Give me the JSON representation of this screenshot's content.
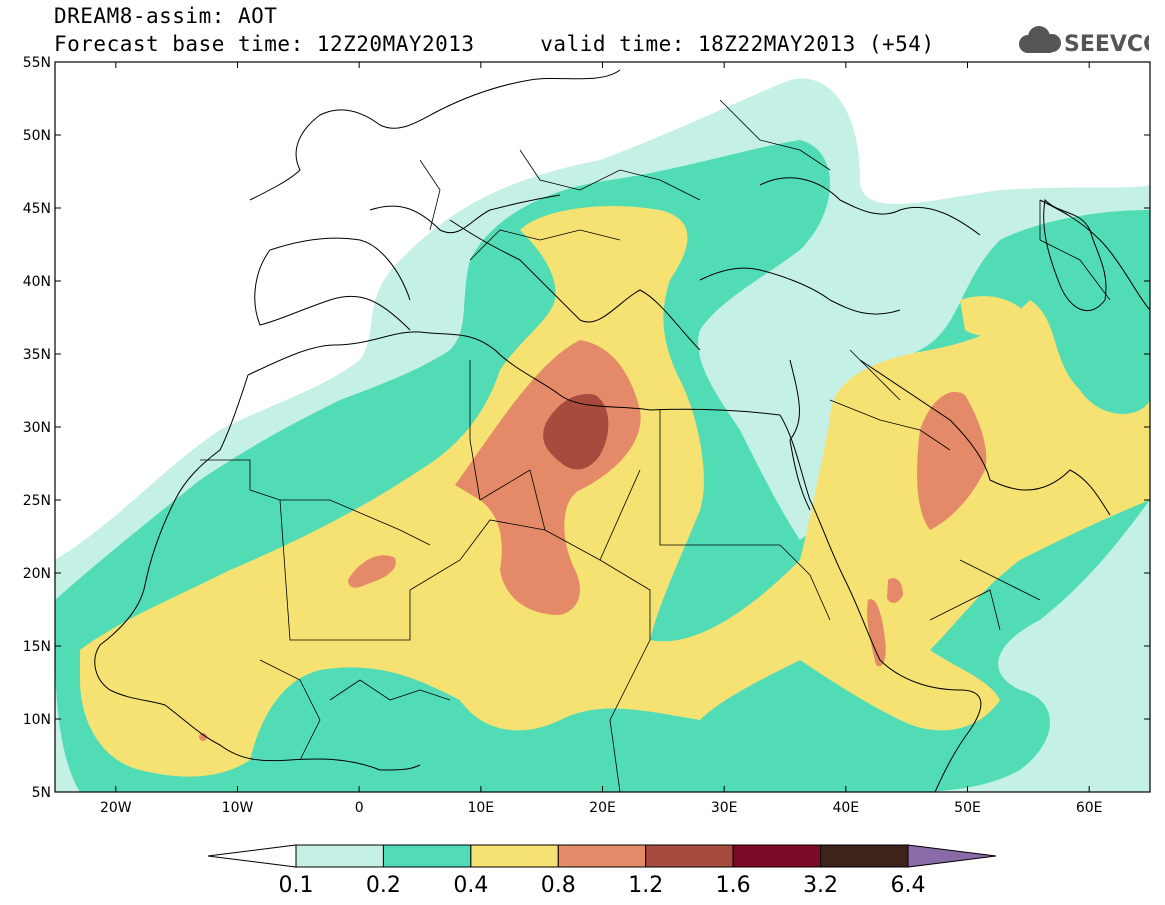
{
  "title": {
    "line1": "DREAM8-assim: AOT",
    "line2": "Forecast base time: 12Z20MAY2013     valid time: 18Z22MAY2013 (+54)"
  },
  "logo": {
    "text": "SEEVCCC",
    "icon": "cloud-icon",
    "color": "#555555"
  },
  "map": {
    "lon_range": [
      -25,
      65
    ],
    "lat_range": [
      5,
      55
    ],
    "lat_ticks": [
      {
        "value": 55,
        "label": "55N"
      },
      {
        "value": 50,
        "label": "50N"
      },
      {
        "value": 45,
        "label": "45N"
      },
      {
        "value": 40,
        "label": "40N"
      },
      {
        "value": 35,
        "label": "35N"
      },
      {
        "value": 30,
        "label": "30N"
      },
      {
        "value": 25,
        "label": "25N"
      },
      {
        "value": 20,
        "label": "20N"
      },
      {
        "value": 15,
        "label": "15N"
      },
      {
        "value": 10,
        "label": "10N"
      },
      {
        "value": 5,
        "label": "5N"
      }
    ],
    "lon_ticks": [
      {
        "value": -20,
        "label": "20W"
      },
      {
        "value": -10,
        "label": "10W"
      },
      {
        "value": 0,
        "label": "0"
      },
      {
        "value": 10,
        "label": "10E"
      },
      {
        "value": 20,
        "label": "20E"
      },
      {
        "value": 30,
        "label": "30E"
      },
      {
        "value": 40,
        "label": "40E"
      },
      {
        "value": 50,
        "label": "50E"
      },
      {
        "value": 60,
        "label": "60E"
      }
    ]
  },
  "colorbar": {
    "levels": [
      "0.1",
      "0.2",
      "0.4",
      "0.8",
      "1.2",
      "1.6",
      "3.2",
      "6.4"
    ],
    "colors": [
      "#ffffff",
      "#c5f0e6",
      "#52dcb5",
      "#f5e273",
      "#e58a68",
      "#a94a3e",
      "#7a0a26",
      "#3e2418",
      "#8a6ba8"
    ]
  }
}
